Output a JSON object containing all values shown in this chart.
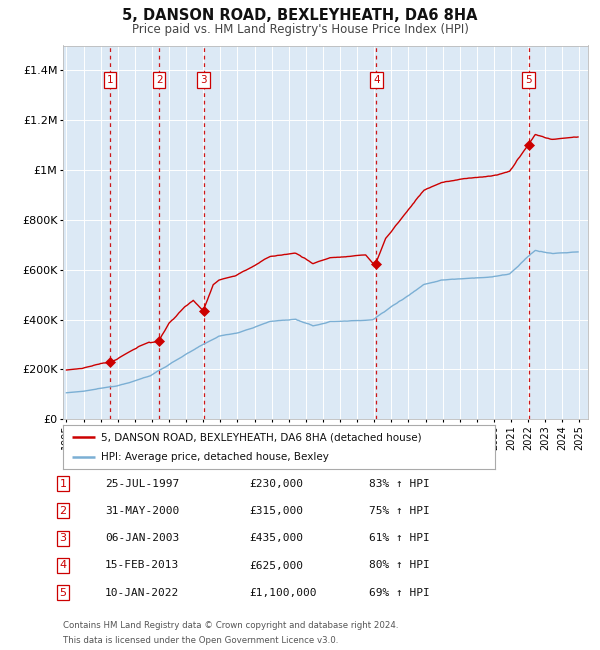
{
  "title": "5, DANSON ROAD, BEXLEYHEATH, DA6 8HA",
  "subtitle": "Price paid vs. HM Land Registry's House Price Index (HPI)",
  "legend_line1": "5, DANSON ROAD, BEXLEYHEATH, DA6 8HA (detached house)",
  "legend_line2": "HPI: Average price, detached house, Bexley",
  "footer_line1": "Contains HM Land Registry data © Crown copyright and database right 2024.",
  "footer_line2": "This data is licensed under the Open Government Licence v3.0.",
  "sales": [
    {
      "num": 1,
      "date": "25-JUL-1997",
      "year": 1997.56,
      "price": 230000,
      "pct": "83%",
      "dir": "↑"
    },
    {
      "num": 2,
      "date": "31-MAY-2000",
      "year": 2000.42,
      "price": 315000,
      "pct": "75%",
      "dir": "↑"
    },
    {
      "num": 3,
      "date": "06-JAN-2003",
      "year": 2003.02,
      "price": 435000,
      "pct": "61%",
      "dir": "↑"
    },
    {
      "num": 4,
      "date": "15-FEB-2013",
      "year": 2013.12,
      "price": 625000,
      "pct": "80%",
      "dir": "↑"
    },
    {
      "num": 5,
      "date": "10-JAN-2022",
      "year": 2022.03,
      "price": 1100000,
      "pct": "69%",
      "dir": "↑"
    }
  ],
  "hpi_color": "#7bafd4",
  "price_color": "#cc0000",
  "sale_dot_color": "#cc0000",
  "vline_color": "#cc0000",
  "plot_bg_color": "#dce9f5",
  "grid_color": "#ffffff",
  "ylim": [
    0,
    1500000
  ],
  "xlim_start": 1994.8,
  "xlim_end": 2025.5,
  "yticks": [
    0,
    200000,
    400000,
    600000,
    800000,
    1000000,
    1200000,
    1400000
  ],
  "ytick_labels": [
    "£0",
    "£200K",
    "£400K",
    "£600K",
    "£800K",
    "£1M",
    "£1.2M",
    "£1.4M"
  ]
}
